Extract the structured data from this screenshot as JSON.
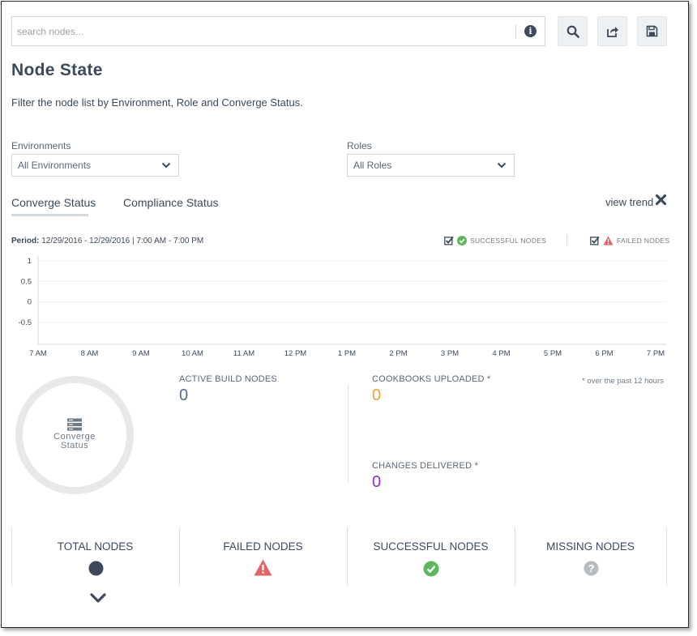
{
  "search": {
    "placeholder": "search nodes..."
  },
  "toolbar": {
    "search_icon": "search-icon",
    "share_icon": "share-icon",
    "save_icon": "save-icon"
  },
  "page": {
    "title": "Node State",
    "description": "Filter the node list by Environment, Role and Converge Status."
  },
  "filters": {
    "environments": {
      "label": "Environments",
      "value": "All Environments"
    },
    "roles": {
      "label": "Roles",
      "value": "All Roles"
    }
  },
  "tabs": [
    {
      "label": "Converge Status",
      "active": true
    },
    {
      "label": "Compliance Status",
      "active": false
    }
  ],
  "view_trend": {
    "label": "view trend"
  },
  "period": {
    "label": "Period:",
    "value": "12/29/2016 - 12/29/2016 | 7:00 AM - 7:00 PM"
  },
  "legend": {
    "successful": {
      "label": "SUCCESSFUL NODES",
      "checked": true,
      "color": "#5cb85c"
    },
    "failed": {
      "label": "FAILED NODES",
      "checked": true,
      "color": "#e06666"
    }
  },
  "chart_data": {
    "type": "line",
    "x": [
      "7 AM",
      "8 AM",
      "9 AM",
      "10 AM",
      "11 AM",
      "12 PM",
      "1 PM",
      "2 PM",
      "3 PM",
      "4 PM",
      "5 PM",
      "6 PM",
      "7 PM"
    ],
    "y_ticks": [
      "1",
      "0.5",
      "0",
      "-0.5"
    ],
    "ylim": [
      -1,
      1
    ],
    "series": [],
    "grid": true
  },
  "donut": {
    "label_line1": "Converge",
    "label_line2": "Status"
  },
  "stats": {
    "active_build_nodes": {
      "label": "ACTIVE BUILD NODES",
      "value": "0",
      "color": "#5a6e85"
    },
    "cookbooks_uploaded": {
      "label": "COOKBOOKS UPLOADED *",
      "value": "0",
      "color": "#f0a030"
    },
    "changes_delivered": {
      "label": "CHANGES DELIVERED *",
      "value": "0",
      "color": "#8a2be2"
    },
    "note": "* over the past 12 hours"
  },
  "node_cells": [
    {
      "label": "TOTAL NODES",
      "icon": "circle-icon",
      "color": "#3c4a5b"
    },
    {
      "label": "FAILED NODES",
      "icon": "warning-icon",
      "color": "#e06666"
    },
    {
      "label": "SUCCESSFUL NODES",
      "icon": "check-circle-icon",
      "color": "#5cb85c"
    },
    {
      "label": "MISSING NODES",
      "icon": "question-circle-icon",
      "color": "#b7bcc1"
    }
  ]
}
